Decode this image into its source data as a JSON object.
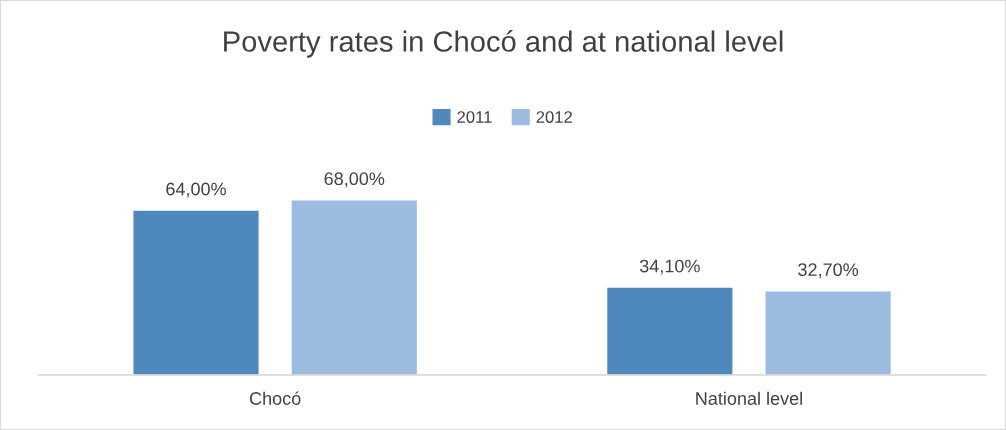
{
  "chart_data": {
    "type": "bar",
    "title": "Poverty rates in Chocó and at national level",
    "categories": [
      "Chocó",
      "National level"
    ],
    "series": [
      {
        "name": "2011",
        "color": "#4f88bd",
        "values": [
          64.0,
          34.1
        ],
        "value_labels": [
          "64,00%",
          "34,10%"
        ]
      },
      {
        "name": "2012",
        "color": "#9bbbe0",
        "values": [
          68.0,
          32.7
        ],
        "value_labels": [
          "68,00%",
          "32,70%"
        ]
      }
    ],
    "legend": "top",
    "grid": false
  }
}
